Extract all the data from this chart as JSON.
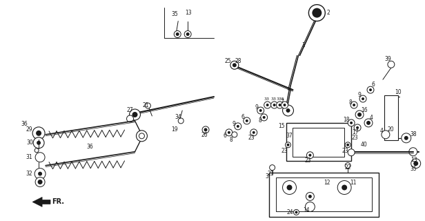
{
  "bg_color": "#ffffff",
  "line_color": "#1a1a1a",
  "title": "",
  "fig_w": 6.16,
  "fig_h": 3.2,
  "dpi": 100
}
